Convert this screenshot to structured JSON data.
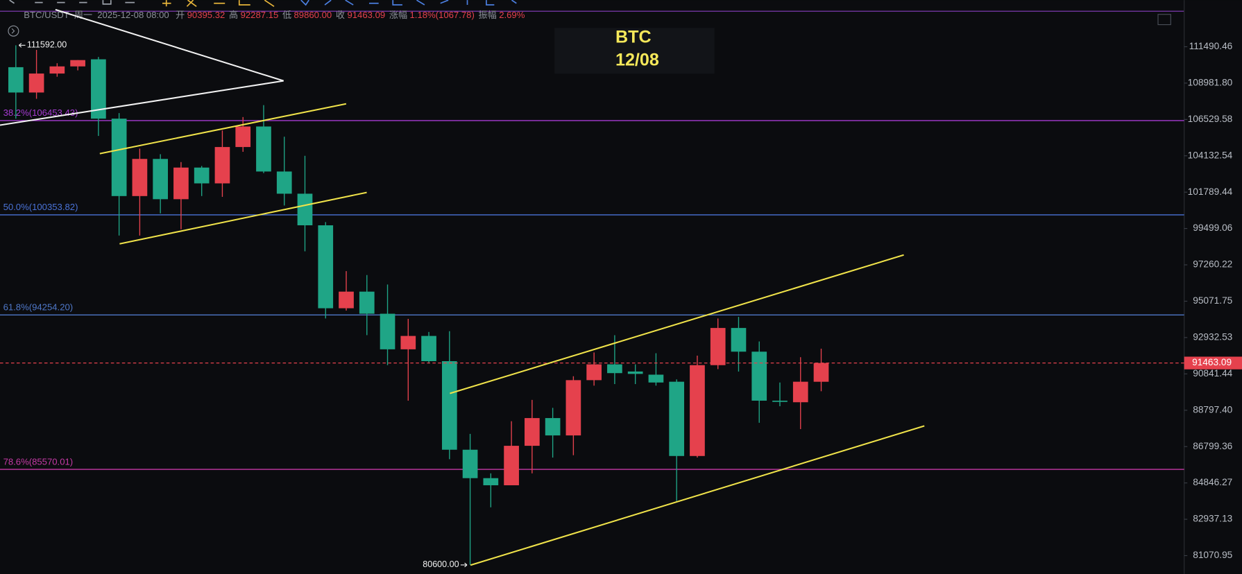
{
  "header": {
    "symbol": "BTC/USDT",
    "weekday": "周一",
    "datetime": "2025-12-08 08:00",
    "fields": [
      {
        "label": "开",
        "value": "90395.32"
      },
      {
        "label": "高",
        "value": "92287.15"
      },
      {
        "label": "低",
        "value": "89860.00"
      },
      {
        "label": "收",
        "value": "91463.09"
      },
      {
        "label": "涨幅",
        "value": "1.18%(1067.78)"
      },
      {
        "label": "振幅",
        "value": "2.69%"
      }
    ]
  },
  "chart_data": {
    "type": "candlestick",
    "title": "BTC",
    "subtitle": "12/08",
    "log_scale": true,
    "up_color": "#e5414d",
    "down_color": "#1fa586",
    "open": [
      110073,
      108342,
      109636,
      110128,
      110618,
      106583,
      101540,
      103929,
      101341,
      103368,
      102350,
      104706,
      106061,
      103113,
      101690,
      99698,
      94653,
      95643,
      94328,
      92250,
      93026,
      91568,
      86629,
      85101,
      84722,
      86842,
      88363,
      87408,
      90486,
      91386,
      90978,
      90797,
      90397,
      86289,
      91340,
      93491,
      92114,
      89331,
      89243,
      90395.32
    ],
    "high": [
      111592,
      111272,
      110346,
      110564,
      110782,
      106956,
      104602,
      104237,
      103725,
      103470,
      105800,
      106690,
      107489,
      105384,
      104133,
      99897,
      96879,
      96641,
      96070,
      94025,
      93258,
      93305,
      87493,
      85356,
      88189,
      89374,
      88930,
      90708,
      92069,
      93069,
      91386,
      92024,
      90530,
      91888,
      94049,
      94142,
      92705,
      90353,
      91796,
      92287.15
    ],
    "low": [
      106583,
      107916,
      109418,
      109855,
      105436,
      99061,
      99061,
      100444,
      99450,
      101540,
      101490,
      104393,
      103011,
      100943,
      98087,
      94049,
      94514,
      93072,
      91340,
      89331,
      91431,
      86119,
      80600,
      83560,
      84722,
      85356,
      86204,
      86332,
      90175,
      90264,
      90264,
      90175,
      83891,
      86204,
      91113,
      90974,
      88103,
      89020,
      87755,
      89860
    ],
    "close": [
      108342,
      109636,
      110128,
      110564,
      106583,
      101540,
      103929,
      101341,
      103368,
      102350,
      104706,
      106061,
      103113,
      101690,
      99698,
      94653,
      95643,
      94328,
      92250,
      93026,
      91568,
      86629,
      85101,
      84722,
      86842,
      88363,
      87408,
      90486,
      91386,
      90885,
      90841,
      90353,
      86289,
      91340,
      93491,
      92114,
      89331,
      89287,
      90397,
      91463.09
    ],
    "ylim": [
      80150,
      114000
    ],
    "yticks": [
      111490.46,
      {
        "value": 108981.8,
        "label": "108981.80"
      },
      106529.58,
      104132.54,
      101789.44,
      99499.06,
      97260.22,
      95071.75,
      92932.53,
      90841.44,
      {
        "value": 88797.4,
        "label": "88797.40"
      },
      86799.36,
      84846.27,
      82937.13,
      81070.95
    ],
    "fib_levels": [
      {
        "label": "38.2%(106453.43)",
        "value": 106453.43,
        "color": "#a63bd2"
      },
      {
        "label": "50.0%(100353.82)",
        "value": 100353.82,
        "color": "#4a73d8"
      },
      {
        "label": "61.8%(94254.20)",
        "value": 94254.2,
        "color": "#4f78c9"
      },
      {
        "label": "78.6%(85570.01)",
        "value": 85570.01,
        "color": "#c63aa6"
      }
    ],
    "high_mark": {
      "value": 111592,
      "label": "111592.00"
    },
    "low_mark": {
      "value": 80600,
      "label": "80600.00"
    },
    "last_price": 91463.09,
    "last_color": "#e5414d"
  }
}
